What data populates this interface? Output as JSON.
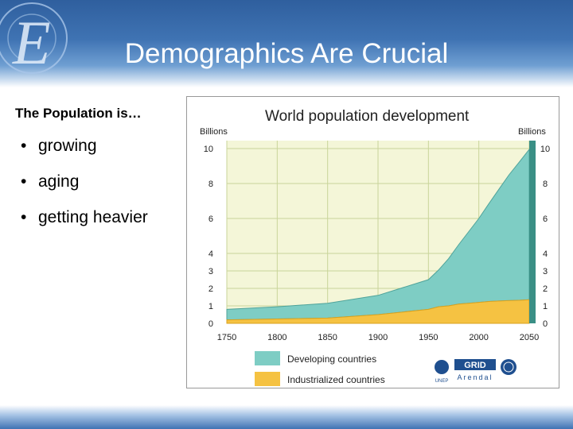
{
  "slide": {
    "title": "Demographics Are Crucial",
    "subtitle": "The Population is…"
  },
  "bullets": [
    "growing",
    "aging",
    "getting heavier"
  ],
  "colors": {
    "developing": "#7ecdc4",
    "industrialized": "#f5c242",
    "plot_bg": "#f4f6d8",
    "header_blue": "#3f73b3"
  },
  "chart_data": {
    "type": "area",
    "title": "World population development",
    "left_axis_label": "Billions",
    "right_axis_label": "Billions",
    "x": [
      1750,
      1800,
      1850,
      1900,
      1950,
      1960,
      1970,
      1980,
      1990,
      2000,
      2010,
      2020,
      2030,
      2040,
      2050
    ],
    "x_ticks": [
      "1750",
      "1800",
      "1850",
      "1900",
      "1950",
      "2000",
      "2050"
    ],
    "left_ticks": [
      "0",
      "1",
      "2",
      "3",
      "4",
      "6",
      "8",
      "10"
    ],
    "right_ticks": [
      "0",
      "1",
      "2",
      "3",
      "4",
      "6",
      "8",
      "10"
    ],
    "ylim": [
      0,
      10
    ],
    "series": [
      {
        "name": "Industrialized countries",
        "values": [
          0.2,
          0.25,
          0.3,
          0.5,
          0.8,
          0.95,
          1.0,
          1.1,
          1.15,
          1.2,
          1.25,
          1.28,
          1.3,
          1.32,
          1.35
        ]
      },
      {
        "name": "Developing countries",
        "values": [
          0.6,
          0.7,
          0.85,
          1.1,
          1.7,
          2.1,
          2.7,
          3.4,
          4.1,
          4.8,
          5.6,
          6.4,
          7.2,
          7.9,
          8.6
        ]
      }
    ],
    "legend": [
      "Developing countries",
      "Industrialized countries"
    ],
    "legend_position": "bottom",
    "logos": [
      "UNEP",
      "GRID",
      "Arendal",
      "UN"
    ]
  }
}
